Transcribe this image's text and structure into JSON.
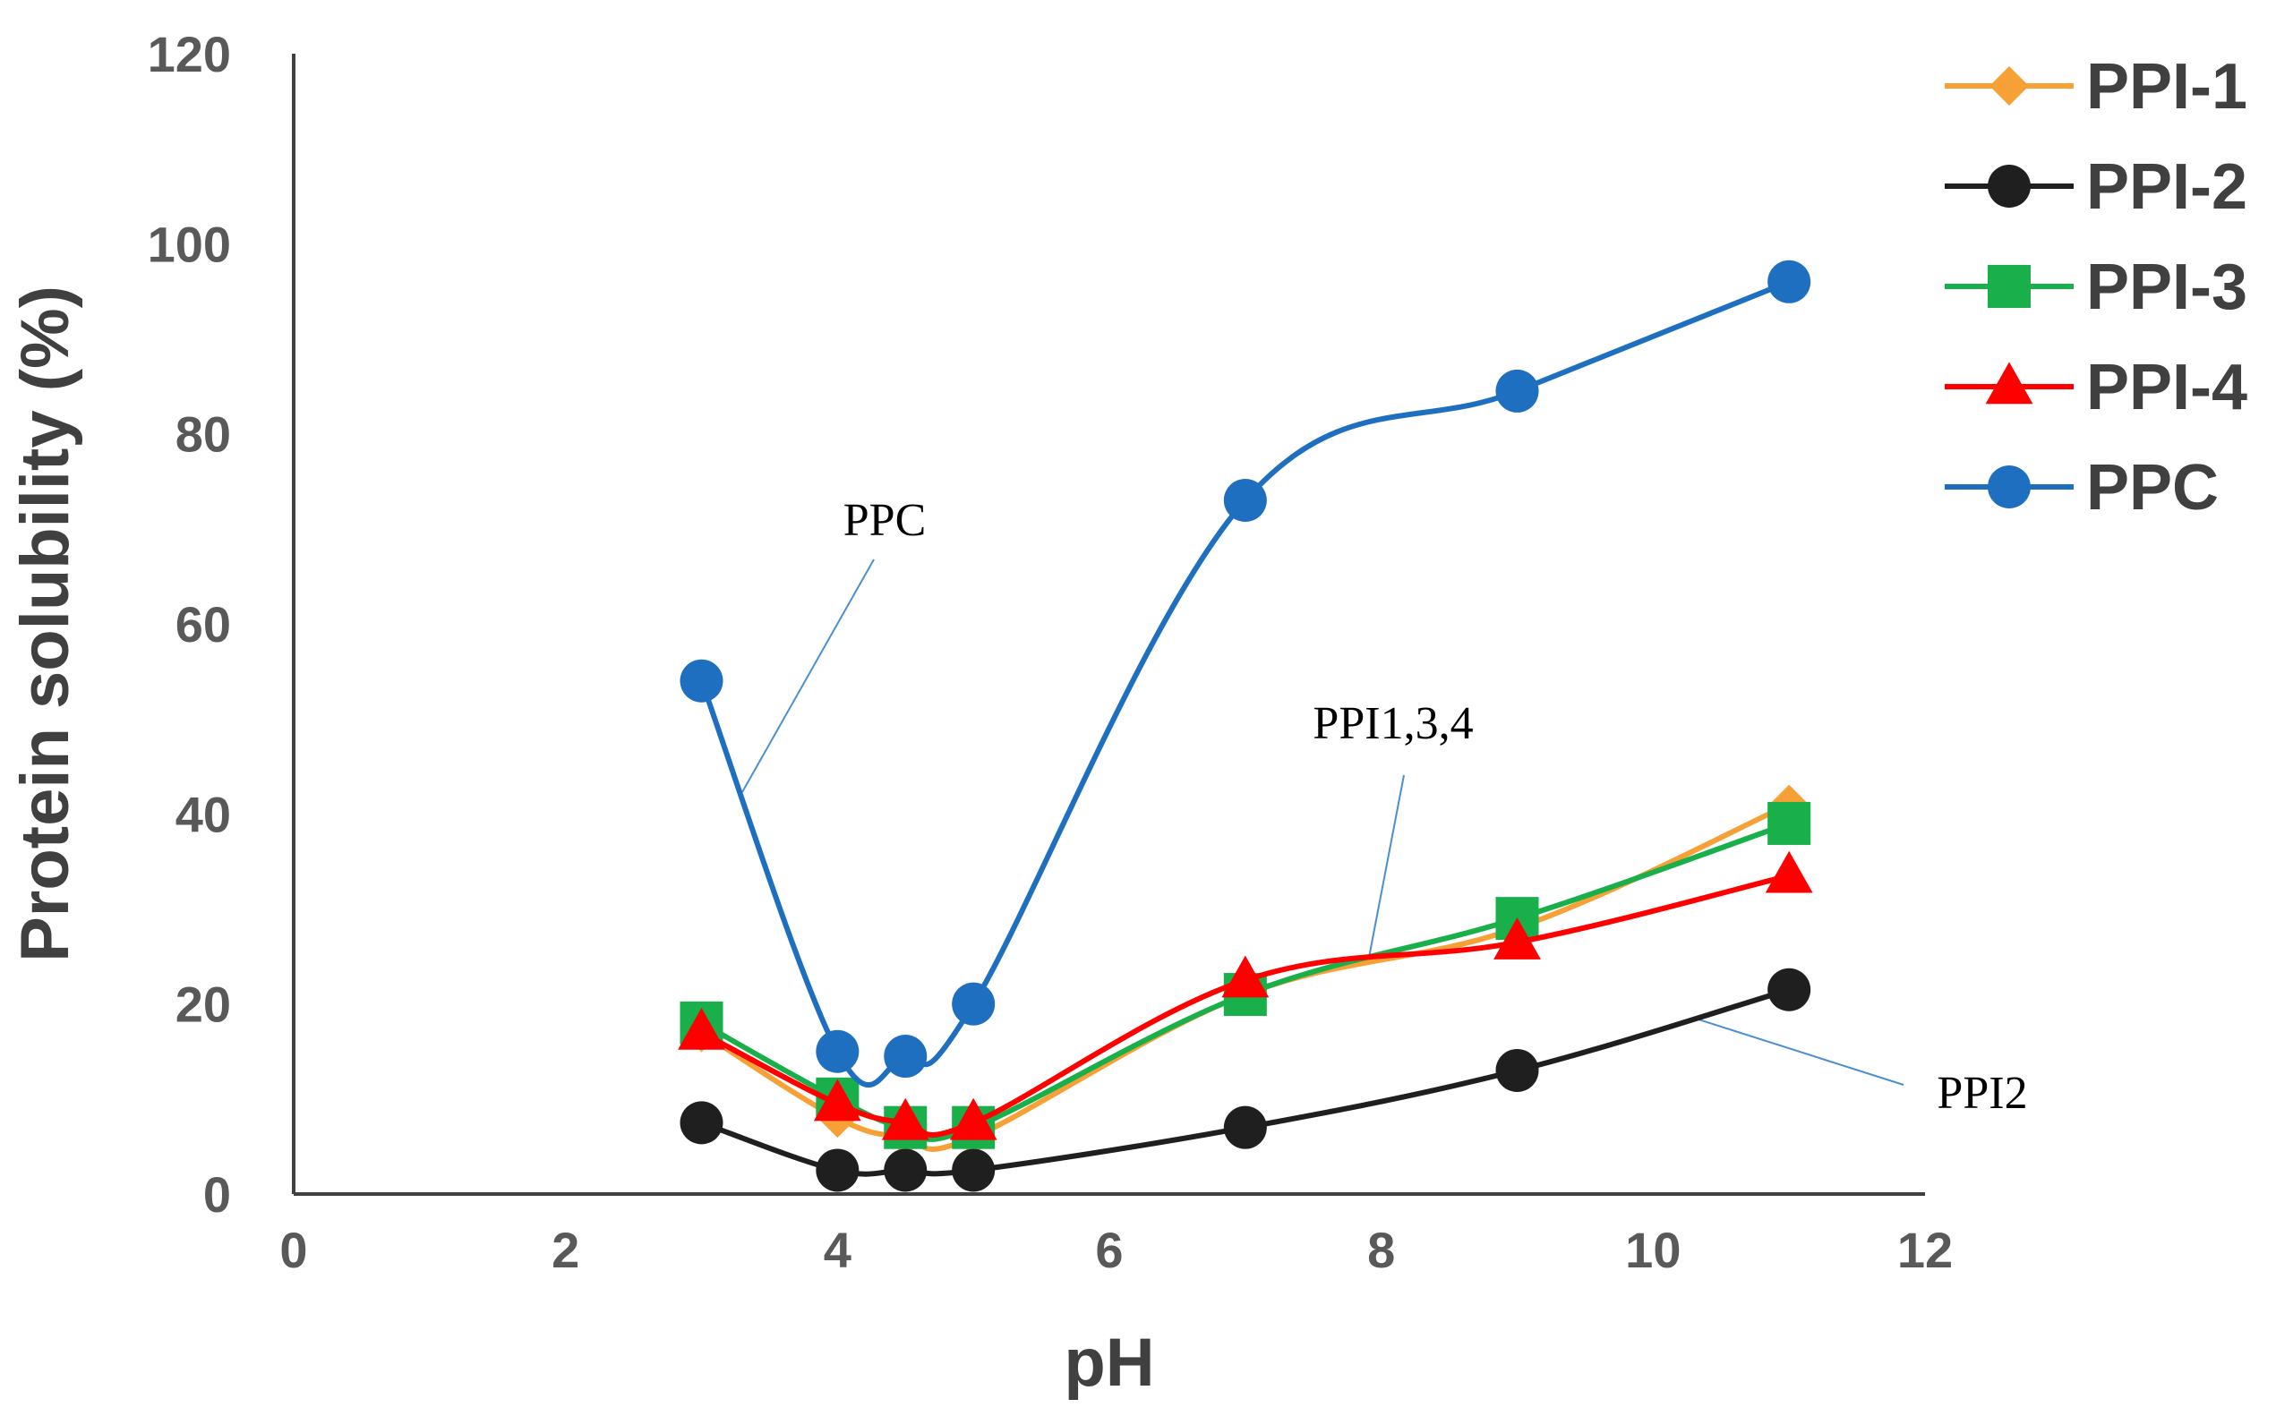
{
  "chart_data": {
    "type": "line",
    "title": "",
    "xlabel": "pH",
    "ylabel": "Protein solubility (%)",
    "xlim": [
      0,
      12
    ],
    "ylim": [
      0,
      120
    ],
    "x_ticks": [
      0,
      2,
      4,
      6,
      8,
      10,
      12
    ],
    "y_ticks": [
      0,
      20,
      40,
      60,
      80,
      100,
      120
    ],
    "grid": false,
    "legend_position": "top-right",
    "x": [
      3,
      4,
      4.5,
      5,
      7,
      9,
      11
    ],
    "series": [
      {
        "name": "PPI-1",
        "color": "#F7A036",
        "marker": "diamond",
        "values": [
          17,
          8,
          6,
          6,
          21,
          28,
          41
        ]
      },
      {
        "name": "PPI-2",
        "color": "#1F1F1F",
        "marker": "circle",
        "values": [
          7.5,
          2.5,
          2.5,
          2.5,
          7,
          13,
          21.5
        ]
      },
      {
        "name": "PPI-3",
        "color": "#19B04B",
        "marker": "square",
        "values": [
          18,
          10,
          7,
          7,
          21,
          29,
          39
        ]
      },
      {
        "name": "PPI-4",
        "color": "#FF0000",
        "marker": "triangle",
        "values": [
          17,
          9.5,
          7.5,
          7.5,
          22.5,
          26.5,
          33.5
        ]
      },
      {
        "name": "PPC",
        "color": "#1F6FC0",
        "marker": "circle",
        "values": [
          54,
          15,
          14.5,
          20,
          73,
          84.5,
          96
        ]
      }
    ],
    "annotations": [
      {
        "text": "PPC",
        "target_series": "PPC"
      },
      {
        "text": "PPI1,3,4",
        "target_series": "PPI-1"
      },
      {
        "text": "PPI2",
        "target_series": "PPI-2"
      }
    ]
  }
}
